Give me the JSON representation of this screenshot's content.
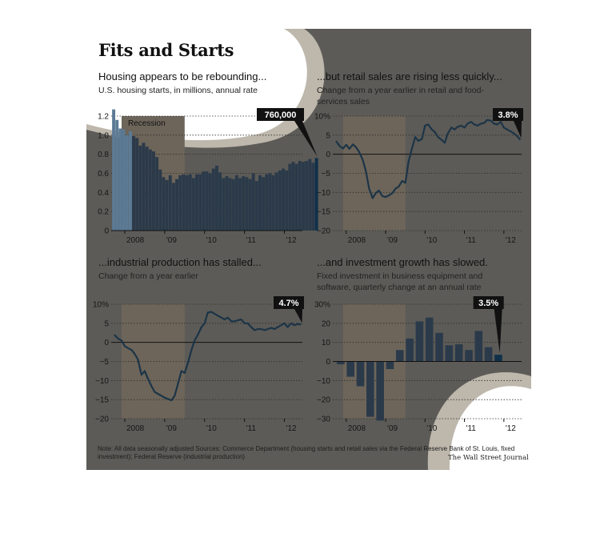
{
  "figure": {
    "title": "Fits and Starts",
    "note": "Note: All data seasonally adjusted    Sources: Commerce Department (housing starts and retail sales via the Federal Reserve Bank of St. Louis, fixed investment); Federal Reserve (industrial production)",
    "credit": "The Wall Street Journal",
    "colors": {
      "panel": "#5c5b57",
      "recession": "#6d655a",
      "bar": "#2b3a4a",
      "line": "#1c3447",
      "callout": "#111111",
      "highlight_bar": "#10304a",
      "pre_bar": "#5b7a95"
    }
  },
  "chart_data": [
    {
      "id": "housing",
      "type": "bar",
      "title": "Housing appears to be rebounding...",
      "subtitle": "U.S. housing starts, in millions, annual rate",
      "recession_label": "Recession",
      "callout": "760,000",
      "yticks": [
        "1.2",
        "1.0",
        "0.8",
        "0.6",
        "0.4",
        "0.2",
        "0"
      ],
      "ytick_values": [
        1.2,
        1.0,
        0.8,
        0.6,
        0.4,
        0.2,
        0
      ],
      "ylim": [
        0,
        1.2
      ],
      "xticks": [
        "2008",
        "'09",
        "'10",
        "'11",
        "'12"
      ],
      "xtick_positions": [
        2008.0,
        2009.0,
        2010.0,
        2011.0,
        2012.0
      ],
      "xlim": [
        2007.7,
        2012.45
      ],
      "recession": [
        2007.92,
        2009.5
      ],
      "x_start": 2007.72,
      "x_step": 0.0833,
      "values": [
        1.27,
        1.16,
        1.07,
        1.06,
        1.0,
        1.04,
        0.99,
        0.97,
        0.89,
        0.92,
        0.88,
        0.85,
        0.83,
        0.77,
        0.64,
        0.56,
        0.53,
        0.58,
        0.5,
        0.54,
        0.58,
        0.59,
        0.58,
        0.59,
        0.55,
        0.59,
        0.59,
        0.62,
        0.62,
        0.6,
        0.65,
        0.68,
        0.61,
        0.55,
        0.57,
        0.55,
        0.54,
        0.58,
        0.55,
        0.57,
        0.56,
        0.54,
        0.6,
        0.52,
        0.58,
        0.56,
        0.59,
        0.6,
        0.58,
        0.61,
        0.63,
        0.65,
        0.63,
        0.7,
        0.72,
        0.7,
        0.73,
        0.72,
        0.73,
        0.75,
        0.71,
        0.76
      ]
    },
    {
      "id": "retail",
      "type": "line",
      "title": "...but retail sales are rising less quickly...",
      "subtitle": "Change from a year earlier in retail and food-services sales",
      "callout": "3.8%",
      "yticks": [
        "10%",
        "5",
        "0",
        "−5",
        "−10",
        "−15",
        "−20"
      ],
      "ytick_values": [
        10,
        5,
        0,
        -5,
        -10,
        -15,
        -20
      ],
      "ylim": [
        -20,
        10
      ],
      "xticks": [
        "2008",
        "'09",
        "'10",
        "'11",
        "'12"
      ],
      "xtick_positions": [
        2008.0,
        2009.0,
        2010.0,
        2011.0,
        2012.0
      ],
      "xlim": [
        2007.7,
        2012.45
      ],
      "recession": [
        2007.92,
        2009.5
      ],
      "x": [
        2007.74,
        2007.83,
        2007.92,
        2008.0,
        2008.08,
        2008.17,
        2008.25,
        2008.33,
        2008.42,
        2008.5,
        2008.58,
        2008.67,
        2008.75,
        2008.83,
        2008.92,
        2009.0,
        2009.08,
        2009.17,
        2009.25,
        2009.33,
        2009.42,
        2009.5,
        2009.58,
        2009.67,
        2009.75,
        2009.83,
        2009.92,
        2010.0,
        2010.08,
        2010.17,
        2010.25,
        2010.33,
        2010.42,
        2010.5,
        2010.58,
        2010.67,
        2010.75,
        2010.83,
        2010.92,
        2011.0,
        2011.08,
        2011.17,
        2011.25,
        2011.33,
        2011.42,
        2011.5,
        2011.58,
        2011.67,
        2011.75,
        2011.83,
        2011.92,
        2012.0,
        2012.08,
        2012.17,
        2012.25,
        2012.33,
        2012.42
      ],
      "y": [
        3.5,
        2.2,
        1.5,
        2.5,
        1.4,
        2.6,
        1.8,
        0.6,
        -1.5,
        -4.5,
        -9.0,
        -11.5,
        -10.2,
        -9.5,
        -11.0,
        -11.2,
        -10.8,
        -10.2,
        -9.0,
        -8.5,
        -7.0,
        -7.5,
        -2.0,
        1.5,
        4.5,
        3.5,
        4.0,
        7.5,
        7.8,
        6.5,
        5.8,
        4.5,
        3.8,
        3.0,
        5.5,
        7.0,
        6.5,
        7.2,
        7.5,
        7.0,
        8.0,
        8.5,
        7.8,
        7.5,
        8.0,
        8.2,
        9.0,
        8.8,
        8.0,
        7.8,
        8.5,
        7.0,
        6.5,
        6.0,
        5.5,
        4.8,
        3.8
      ]
    },
    {
      "id": "industrial",
      "type": "line",
      "title": "...industrial production has stalled...",
      "subtitle": "Change from a year earlier",
      "callout": "4.7%",
      "yticks": [
        "10%",
        "5",
        "0",
        "−5",
        "−10",
        "−15",
        "−20"
      ],
      "ytick_values": [
        10,
        5,
        0,
        -5,
        -10,
        -15,
        -20
      ],
      "ylim": [
        -20,
        10
      ],
      "xticks": [
        "2008",
        "'09",
        "'10",
        "'11",
        "'12"
      ],
      "xtick_positions": [
        2008.0,
        2009.0,
        2010.0,
        2011.0,
        2012.0
      ],
      "xlim": [
        2007.7,
        2012.45
      ],
      "recession": [
        2007.92,
        2009.5
      ],
      "x": [
        2007.74,
        2007.83,
        2007.92,
        2008.0,
        2008.08,
        2008.17,
        2008.25,
        2008.33,
        2008.42,
        2008.5,
        2008.58,
        2008.67,
        2008.75,
        2008.83,
        2008.92,
        2009.0,
        2009.08,
        2009.17,
        2009.25,
        2009.33,
        2009.42,
        2009.5,
        2009.58,
        2009.67,
        2009.75,
        2009.83,
        2009.92,
        2010.0,
        2010.08,
        2010.17,
        2010.25,
        2010.33,
        2010.42,
        2010.5,
        2010.58,
        2010.67,
        2010.75,
        2010.83,
        2010.92,
        2011.0,
        2011.08,
        2011.17,
        2011.25,
        2011.33,
        2011.42,
        2011.5,
        2011.58,
        2011.67,
        2011.75,
        2011.83,
        2011.92,
        2012.0,
        2012.08,
        2012.17,
        2012.25,
        2012.33,
        2012.42
      ],
      "y": [
        2.0,
        1.0,
        0.5,
        -1.0,
        -1.5,
        -2.0,
        -3.0,
        -4.5,
        -8.5,
        -7.5,
        -9.5,
        -11.5,
        -13.0,
        -13.5,
        -14.0,
        -14.5,
        -14.8,
        -15.2,
        -14.0,
        -11.0,
        -7.5,
        -8.0,
        -5.5,
        -2.0,
        0.5,
        2.0,
        4.0,
        5.0,
        7.8,
        8.0,
        7.5,
        7.0,
        6.5,
        6.0,
        6.5,
        5.5,
        5.5,
        5.8,
        6.0,
        5.0,
        5.0,
        4.0,
        3.2,
        3.5,
        3.5,
        3.2,
        3.5,
        3.8,
        3.5,
        4.0,
        4.5,
        5.0,
        4.0,
        5.0,
        4.5,
        4.8,
        4.7
      ]
    },
    {
      "id": "investment",
      "type": "bar",
      "title": "...and investment growth has slowed.",
      "subtitle": "Fixed investment in business equipment and software, quarterly change at an annual rate",
      "callout": "3.5%",
      "yticks": [
        "30%",
        "20",
        "10",
        "0",
        "−10",
        "−20",
        "−30"
      ],
      "ytick_values": [
        30,
        20,
        10,
        0,
        -10,
        -20,
        -30
      ],
      "ylim": [
        -30,
        30
      ],
      "xticks": [
        "2008",
        "'09",
        "'10",
        "'11",
        "'12"
      ],
      "xtick_positions": [
        2008.0,
        2009.0,
        2010.0,
        2011.0,
        2012.0
      ],
      "xlim": [
        2007.7,
        2012.45
      ],
      "recession": [
        2007.92,
        2009.5
      ],
      "x_start": 2007.875,
      "x_step": 0.25,
      "values": [
        -1.5,
        -8,
        -13,
        -29,
        -31,
        -4,
        6,
        12,
        21,
        23,
        15,
        8.5,
        9,
        6,
        16,
        7.5,
        3.5
      ]
    }
  ]
}
